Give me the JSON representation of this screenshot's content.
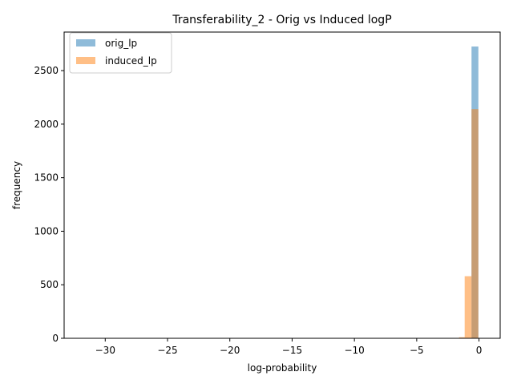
{
  "chart_data": {
    "type": "bar",
    "title": "Transferability_2 - Orig vs Induced logP",
    "xlabel": "log-probability",
    "ylabel": "frequency",
    "xlim": [
      -33.3,
      1.7
    ],
    "ylim": [
      0,
      2860
    ],
    "x_ticks": [
      -30,
      -25,
      -20,
      -15,
      -10,
      -5,
      0
    ],
    "x_tick_labels": [
      "−30",
      "−25",
      "−20",
      "−15",
      "−10",
      "−5",
      "0"
    ],
    "y_ticks": [
      0,
      500,
      1000,
      1500,
      2000,
      2500
    ],
    "y_tick_labels": [
      "0",
      "500",
      "1000",
      "1500",
      "2000",
      "2500"
    ],
    "legend_position": "upper-left",
    "grid": false,
    "series": [
      {
        "name": "orig_lp",
        "color": "#1f77b4",
        "opacity": 0.5,
        "bins": [
          {
            "x0": -0.6,
            "x1": -0.05,
            "count": 2725
          }
        ]
      },
      {
        "name": "induced_lp",
        "color": "#ff7f0e",
        "opacity": 0.5,
        "bins": [
          {
            "x0": -1.6,
            "x1": -1.15,
            "count": 10
          },
          {
            "x0": -1.15,
            "x1": -0.6,
            "count": 580
          },
          {
            "x0": -0.6,
            "x1": -0.05,
            "count": 2140
          }
        ]
      }
    ]
  }
}
